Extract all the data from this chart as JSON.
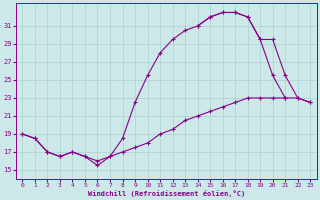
{
  "xlabel": "Windchill (Refroidissement éolien,°C)",
  "bg_color": "#cce8e8",
  "grid_color": "#aad0d0",
  "line_color": "#880088",
  "xlim": [
    -0.5,
    23.5
  ],
  "ylim": [
    14.0,
    33.5
  ],
  "yticks": [
    15,
    17,
    19,
    21,
    23,
    25,
    27,
    29,
    31
  ],
  "xticks": [
    0,
    1,
    2,
    3,
    4,
    5,
    6,
    7,
    8,
    9,
    10,
    11,
    12,
    13,
    14,
    15,
    16,
    17,
    18,
    19,
    20,
    21,
    22,
    23
  ],
  "curve1_x": [
    0,
    1,
    2,
    3,
    4,
    5,
    6,
    7,
    8,
    9,
    10,
    11,
    12,
    13,
    14,
    15,
    16,
    17,
    18,
    19,
    20,
    21
  ],
  "curve1_y": [
    19.0,
    18.5,
    17.0,
    16.5,
    17.0,
    16.5,
    15.5,
    16.5,
    18.5,
    22.5,
    25.5,
    28.0,
    29.5,
    30.5,
    31.0,
    32.0,
    32.5,
    32.5,
    32.0,
    29.5,
    25.5,
    23.0
  ],
  "curve2_x": [
    0,
    1,
    2,
    3,
    4,
    5,
    6,
    7,
    8,
    9,
    10,
    11,
    12,
    13,
    14,
    15,
    16,
    17,
    18,
    19,
    20,
    21,
    22,
    23
  ],
  "curve2_y": [
    19.0,
    18.5,
    17.0,
    16.5,
    17.0,
    16.5,
    16.0,
    16.5,
    17.0,
    17.5,
    18.0,
    19.0,
    19.5,
    20.5,
    21.0,
    21.5,
    22.0,
    22.5,
    23.0,
    23.0,
    23.0,
    23.0,
    23.0,
    22.5
  ],
  "curve3_x": [
    14,
    15,
    16,
    17,
    18,
    19,
    20,
    21,
    22,
    23
  ],
  "curve3_y": [
    31.0,
    32.0,
    32.5,
    32.5,
    32.0,
    29.5,
    29.5,
    25.5,
    23.0,
    22.5
  ]
}
